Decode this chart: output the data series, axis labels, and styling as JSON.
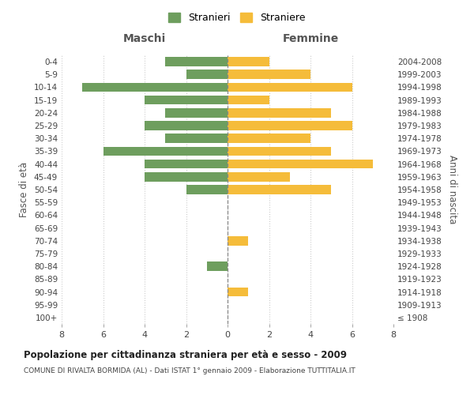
{
  "age_groups": [
    "100+",
    "95-99",
    "90-94",
    "85-89",
    "80-84",
    "75-79",
    "70-74",
    "65-69",
    "60-64",
    "55-59",
    "50-54",
    "45-49",
    "40-44",
    "35-39",
    "30-34",
    "25-29",
    "20-24",
    "15-19",
    "10-14",
    "5-9",
    "0-4"
  ],
  "birth_years": [
    "≤ 1908",
    "1909-1913",
    "1914-1918",
    "1919-1923",
    "1924-1928",
    "1929-1933",
    "1934-1938",
    "1939-1943",
    "1944-1948",
    "1949-1953",
    "1954-1958",
    "1959-1963",
    "1964-1968",
    "1969-1973",
    "1974-1978",
    "1979-1983",
    "1984-1988",
    "1989-1993",
    "1994-1998",
    "1999-2003",
    "2004-2008"
  ],
  "maschi": [
    0,
    0,
    0,
    0,
    1,
    0,
    0,
    0,
    0,
    0,
    2,
    4,
    4,
    6,
    3,
    4,
    3,
    4,
    7,
    2,
    3
  ],
  "femmine": [
    0,
    0,
    1,
    0,
    0,
    0,
    1,
    0,
    0,
    0,
    5,
    3,
    7,
    5,
    4,
    6,
    5,
    2,
    6,
    4,
    2
  ],
  "maschi_color": "#6e9e5e",
  "femmine_color": "#f5bc3a",
  "title": "Popolazione per cittadinanza straniera per età e sesso - 2009",
  "subtitle": "COMUNE DI RIVALTA BORMIDA (AL) - Dati ISTAT 1° gennaio 2009 - Elaborazione TUTTITALIA.IT",
  "xlabel_left": "Maschi",
  "xlabel_right": "Femmine",
  "ylabel_left": "Fasce di età",
  "ylabel_right": "Anni di nascita",
  "legend_maschi": "Stranieri",
  "legend_femmine": "Straniere",
  "xlim": 8,
  "bg_color": "#ffffff",
  "grid_color": "#cccccc",
  "bar_height": 0.72
}
